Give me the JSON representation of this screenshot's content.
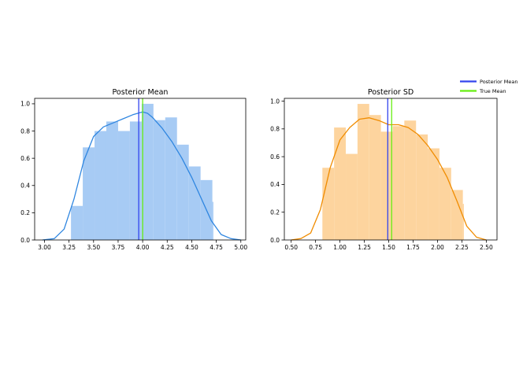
{
  "colors": {
    "mean_hist": "#a7cbf4",
    "mean_kde": "#2f86e0",
    "sd_hist": "#fdd49e",
    "sd_kde": "#f08c00",
    "posterior_mean_line": "#3344ee",
    "true_mean_line": "#66ee11"
  },
  "legend": {
    "posterior_mean": "Posterior Mean",
    "true_mean": "True Mean"
  },
  "chart_data": [
    {
      "type": "histogram",
      "title": "Posterior Mean",
      "xlim": [
        2.9,
        5.05
      ],
      "ylim": [
        0,
        1.04
      ],
      "xticks": [
        "3.00",
        "3.25",
        "3.50",
        "3.75",
        "4.00",
        "4.25",
        "4.50",
        "4.75",
        "5.00"
      ],
      "yticks": [
        "0.0",
        "0.2",
        "0.4",
        "0.6",
        "0.8",
        "1.0"
      ],
      "bins": [
        {
          "x0": 3.27,
          "x1": 3.39,
          "y": 0.25
        },
        {
          "x0": 3.39,
          "x1": 3.51,
          "y": 0.68
        },
        {
          "x0": 3.51,
          "x1": 3.63,
          "y": 0.8
        },
        {
          "x0": 3.63,
          "x1": 3.75,
          "y": 0.87
        },
        {
          "x0": 3.75,
          "x1": 3.87,
          "y": 0.8
        },
        {
          "x0": 3.87,
          "x1": 3.99,
          "y": 0.87
        },
        {
          "x0": 3.99,
          "x1": 4.11,
          "y": 1.0
        },
        {
          "x0": 4.11,
          "x1": 4.23,
          "y": 0.88
        },
        {
          "x0": 4.23,
          "x1": 4.35,
          "y": 0.9
        },
        {
          "x0": 4.35,
          "x1": 4.47,
          "y": 0.7
        },
        {
          "x0": 4.47,
          "x1": 4.59,
          "y": 0.54
        },
        {
          "x0": 4.59,
          "x1": 4.71,
          "y": 0.44
        },
        {
          "x0": 4.71,
          "x1": 4.72,
          "y": 0.28
        }
      ],
      "kde": {
        "x": [
          2.98,
          3.1,
          3.2,
          3.3,
          3.4,
          3.5,
          3.6,
          3.7,
          3.8,
          3.9,
          4.0,
          4.05,
          4.1,
          4.2,
          4.3,
          4.4,
          4.5,
          4.6,
          4.7,
          4.8,
          4.9,
          5.0
        ],
        "y": [
          0.0,
          0.01,
          0.08,
          0.3,
          0.58,
          0.76,
          0.83,
          0.86,
          0.89,
          0.92,
          0.94,
          0.93,
          0.9,
          0.82,
          0.72,
          0.6,
          0.46,
          0.3,
          0.14,
          0.04,
          0.01,
          0.0
        ]
      },
      "posterior_mean": 3.96,
      "true_mean": 4.0
    },
    {
      "type": "histogram",
      "title": "Posterior SD",
      "xlim": [
        0.43,
        2.61
      ],
      "ylim": [
        0,
        1.02
      ],
      "xticks": [
        "0.50",
        "0.75",
        "1.00",
        "1.25",
        "1.50",
        "1.75",
        "2.00",
        "2.25",
        "2.50"
      ],
      "yticks": [
        "0.0",
        "0.2",
        "0.4",
        "0.6",
        "0.8",
        "1.0"
      ],
      "bins": [
        {
          "x0": 0.82,
          "x1": 0.94,
          "y": 0.52
        },
        {
          "x0": 0.94,
          "x1": 1.06,
          "y": 0.81
        },
        {
          "x0": 1.06,
          "x1": 1.18,
          "y": 0.62
        },
        {
          "x0": 1.18,
          "x1": 1.3,
          "y": 0.98
        },
        {
          "x0": 1.3,
          "x1": 1.42,
          "y": 0.9
        },
        {
          "x0": 1.42,
          "x1": 1.54,
          "y": 0.78
        },
        {
          "x0": 1.54,
          "x1": 1.66,
          "y": 0.82
        },
        {
          "x0": 1.66,
          "x1": 1.78,
          "y": 0.86
        },
        {
          "x0": 1.78,
          "x1": 1.9,
          "y": 0.76
        },
        {
          "x0": 1.9,
          "x1": 2.02,
          "y": 0.66
        },
        {
          "x0": 2.02,
          "x1": 2.14,
          "y": 0.52
        },
        {
          "x0": 2.14,
          "x1": 2.26,
          "y": 0.36
        },
        {
          "x0": 2.26,
          "x1": 2.27,
          "y": 0.26
        }
      ],
      "kde": {
        "x": [
          0.5,
          0.6,
          0.7,
          0.8,
          0.9,
          1.0,
          1.1,
          1.2,
          1.3,
          1.4,
          1.5,
          1.6,
          1.7,
          1.8,
          1.9,
          2.0,
          2.1,
          2.2,
          2.3,
          2.4,
          2.5
        ],
        "y": [
          0.0,
          0.01,
          0.05,
          0.22,
          0.52,
          0.72,
          0.81,
          0.87,
          0.88,
          0.86,
          0.83,
          0.83,
          0.81,
          0.76,
          0.68,
          0.58,
          0.45,
          0.28,
          0.1,
          0.02,
          0.0
        ]
      },
      "posterior_mean": 1.49,
      "true_mean": 1.53
    }
  ]
}
